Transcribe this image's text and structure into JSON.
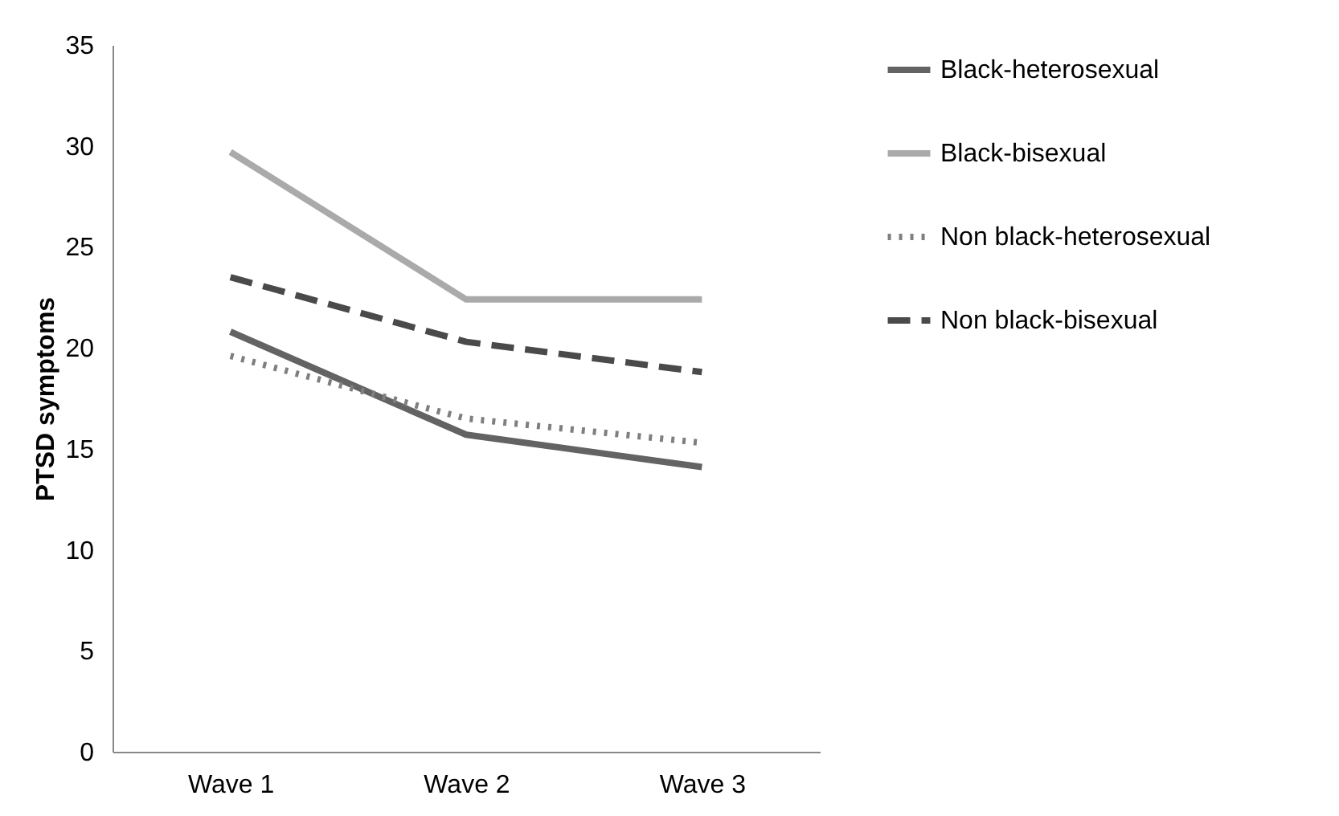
{
  "chart_data": {
    "type": "line",
    "ylabel": "PTSD symptoms",
    "categories": [
      "Wave 1",
      "Wave 2",
      "Wave 3"
    ],
    "ylim": [
      0,
      35
    ],
    "yticks": [
      0,
      5,
      10,
      15,
      20,
      25,
      30,
      35
    ],
    "grid": false,
    "legend": "right",
    "marker": "none",
    "series": [
      {
        "name": "Black-heterosexual",
        "color": "#636363",
        "line_style": "solid",
        "values": [
          20.8,
          15.7,
          14.1
        ]
      },
      {
        "name": "Black-bisexual",
        "color": "#aaaaaa",
        "line_style": "solid",
        "values": [
          29.7,
          22.4,
          22.4
        ]
      },
      {
        "name": "Non black-heterosexual",
        "color": "#7f7f7f",
        "line_style": "dotted",
        "values": [
          19.6,
          16.5,
          15.3
        ]
      },
      {
        "name": "Non black-bisexual",
        "color": "#4a4a4a",
        "line_style": "dashed",
        "values": [
          23.5,
          20.3,
          18.8
        ]
      }
    ]
  }
}
